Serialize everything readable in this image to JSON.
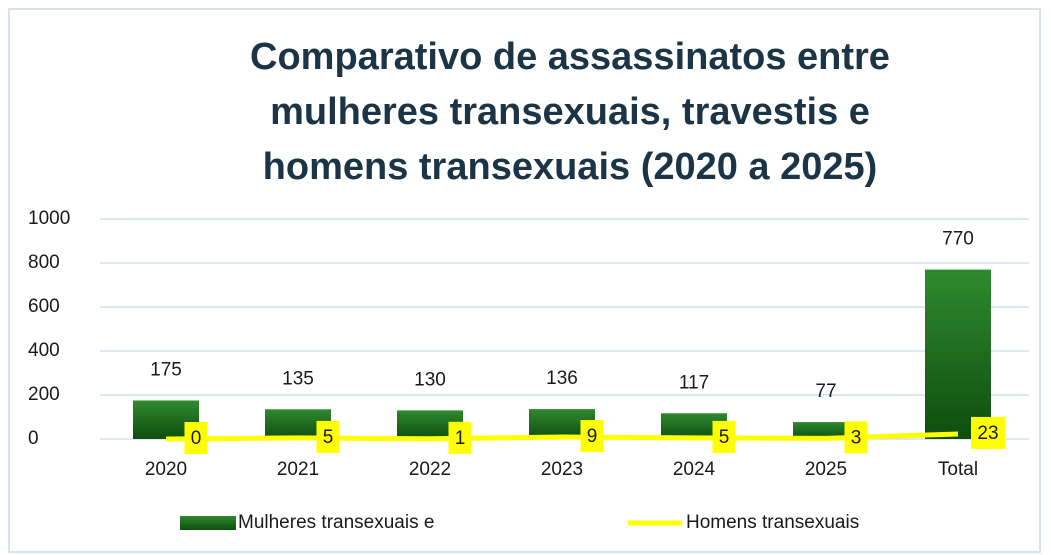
{
  "chart_data": {
    "type": "bar",
    "title": "Comparativo de assassinatos entre mulheres transexuais, travestis e homens transexuais (2020 a 2025)",
    "categories": [
      "2020",
      "2021",
      "2022",
      "2023",
      "2024",
      "2025",
      "Total"
    ],
    "series": [
      {
        "name": "Mulheres transexuais e",
        "type": "bar",
        "color": "#1e6b1e",
        "values": [
          175,
          135,
          130,
          136,
          117,
          77,
          770
        ]
      },
      {
        "name": "Homens transexuais",
        "type": "line",
        "color": "#ffff00",
        "values": [
          0,
          5,
          1,
          9,
          5,
          3,
          23
        ]
      }
    ],
    "ylim": [
      0,
      1000
    ],
    "yticks": [
      0,
      200,
      400,
      600,
      800,
      1000
    ],
    "grid": true,
    "legend": "bottom"
  }
}
